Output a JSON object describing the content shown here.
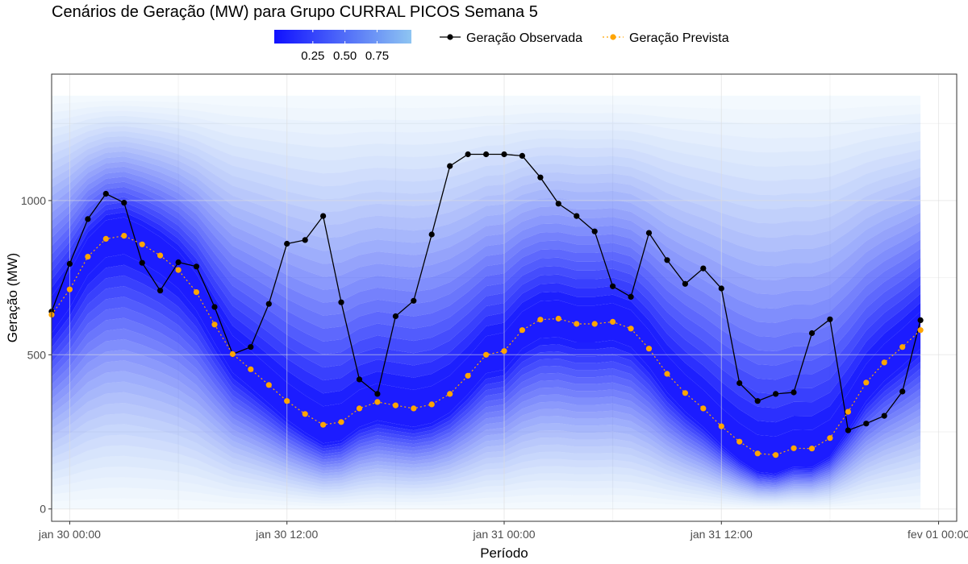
{
  "chart_data": {
    "type": "area",
    "title": "Cenários de Geração (MW) para Grupo CURRAL PICOS Semana 5",
    "xlabel": "Período",
    "ylabel": "Geração (MW)",
    "x_ticks": [
      "jan 30 00:00",
      "jan 30 12:00",
      "jan 31 00:00",
      "jan 31 12:00",
      "fev 01 00:00"
    ],
    "y_ticks": [
      0,
      500,
      1000
    ],
    "ylim": [
      -40,
      1410
    ],
    "x_start": "2024-01-29 23:00",
    "x_end": "2024-02-01 01:00",
    "grid": true,
    "legend_position": "top",
    "quantile_legend": {
      "ticks": [
        "0.25",
        "0.50",
        "0.75"
      ],
      "colors": [
        "#1010ff",
        "#8ec5f2"
      ]
    },
    "fan": {
      "band_min": 0,
      "band_max": 1340,
      "color_low": "#1010ff",
      "color_high": "#8ec5f2"
    },
    "x": [
      "jan 29 23:00",
      "jan 30 00:00",
      "jan 30 01:00",
      "jan 30 02:00",
      "jan 30 03:00",
      "jan 30 04:00",
      "jan 30 05:00",
      "jan 30 06:00",
      "jan 30 07:00",
      "jan 30 08:00",
      "jan 30 09:00",
      "jan 30 10:00",
      "jan 30 11:00",
      "jan 30 12:00",
      "jan 30 13:00",
      "jan 30 14:00",
      "jan 30 15:00",
      "jan 30 16:00",
      "jan 30 17:00",
      "jan 30 18:00",
      "jan 30 19:00",
      "jan 30 20:00",
      "jan 30 21:00",
      "jan 30 22:00",
      "jan 30 23:00",
      "jan 31 00:00",
      "jan 31 01:00",
      "jan 31 02:00",
      "jan 31 03:00",
      "jan 31 04:00",
      "jan 31 05:00",
      "jan 31 06:00",
      "jan 31 07:00",
      "jan 31 08:00",
      "jan 31 09:00",
      "jan 31 10:00",
      "jan 31 11:00",
      "jan 31 12:00",
      "jan 31 13:00",
      "jan 31 14:00",
      "jan 31 15:00",
      "jan 31 16:00",
      "jan 31 17:00",
      "jan 31 18:00",
      "jan 31 19:00",
      "jan 31 20:00",
      "jan 31 21:00",
      "jan 31 22:00",
      "jan 31 23:00"
    ],
    "series": [
      {
        "name": "Geração Observada",
        "color": "#000000",
        "values": [
          640,
          795,
          940,
          1022,
          993,
          798,
          708,
          800,
          786,
          655,
          502,
          525,
          665,
          860,
          872,
          950,
          670,
          420,
          373,
          625,
          675,
          890,
          1112,
          1150,
          1150,
          1150,
          1145,
          1075,
          990,
          950,
          900,
          722,
          688,
          895,
          807,
          730,
          780,
          715,
          408,
          350,
          373,
          378,
          570,
          615,
          255,
          277,
          302,
          381,
          612
        ]
      },
      {
        "name": "Geração Prevista",
        "color": "#ffa500",
        "values": [
          630,
          712,
          818,
          876,
          886,
          858,
          822,
          775,
          703,
          598,
          502,
          453,
          402,
          350,
          308,
          273,
          282,
          326,
          347,
          336,
          326,
          339,
          373,
          432,
          500,
          512,
          580,
          614,
          617,
          600,
          600,
          607,
          585,
          520,
          438,
          376,
          326,
          268,
          218,
          180,
          175,
          197,
          196,
          230,
          315,
          410,
          475,
          525,
          580
        ]
      }
    ]
  }
}
